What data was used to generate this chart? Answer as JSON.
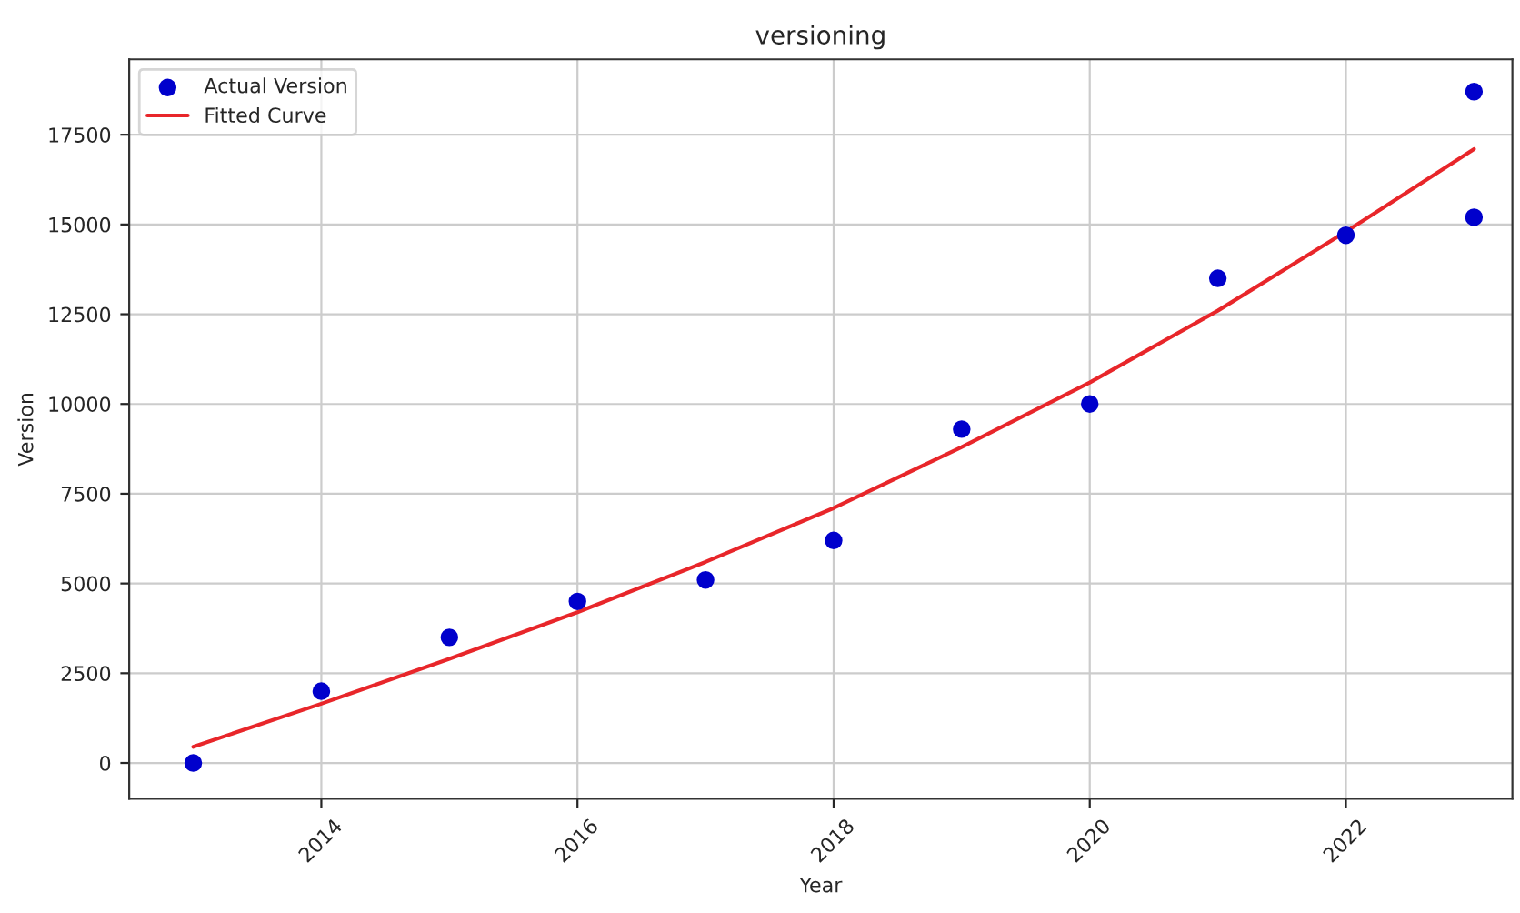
{
  "chart_data": {
    "type": "scatter",
    "title": "versioning",
    "xlabel": "Year",
    "ylabel": "Version",
    "series": [
      {
        "name": "Actual Version",
        "marker": "circle",
        "color": "#0000cc",
        "x": [
          2013,
          2014,
          2015,
          2016,
          2017,
          2018,
          2019,
          2020,
          2021,
          2022,
          2023,
          2023
        ],
        "values": [
          0,
          2000,
          3500,
          4500,
          5100,
          6200,
          9300,
          10000,
          13500,
          14700,
          18700,
          15200
        ]
      },
      {
        "name": "Fitted Curve",
        "type": "line",
        "color": "#e8262a",
        "x": [
          2013,
          2014,
          2015,
          2016,
          2017,
          2018,
          2019,
          2020,
          2021,
          2022,
          2023
        ],
        "values": [
          450,
          1650,
          2900,
          4200,
          5600,
          7100,
          8800,
          10600,
          12600,
          14800,
          17100
        ]
      }
    ],
    "xlim": [
      2012.5,
      2023.3
    ],
    "ylim": [
      -1000,
      19600
    ],
    "xticks": [
      2014,
      2016,
      2018,
      2020,
      2022
    ],
    "yticks": [
      0,
      2500,
      5000,
      7500,
      10000,
      12500,
      15000,
      17500
    ],
    "grid": true,
    "legend": "top left"
  }
}
